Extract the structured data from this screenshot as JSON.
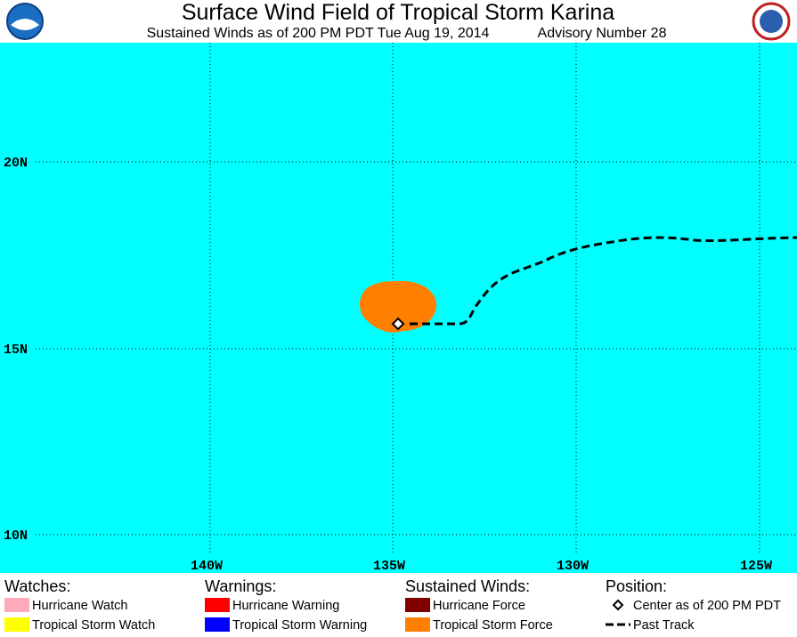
{
  "header": {
    "title": "Surface Wind Field of Tropical Storm Karina",
    "subtitle": "Sustained Winds as of 200 PM PDT Tue Aug 19, 2014",
    "advisory": "Advisory Number 28"
  },
  "map": {
    "lat_labels": [
      "20N",
      "15N",
      "10N"
    ],
    "lon_labels": [
      "140W",
      "135W",
      "130W",
      "125W"
    ]
  },
  "legend": {
    "groups": [
      {
        "heading": "Watches:",
        "items": [
          "Hurricane Watch",
          "Tropical Storm Watch"
        ]
      },
      {
        "heading": "Warnings:",
        "items": [
          "Hurricane Warning",
          "Tropical Storm Warning"
        ]
      },
      {
        "heading": "Sustained Winds:",
        "items": [
          "Hurricane Force",
          "Tropical Storm Force"
        ]
      },
      {
        "heading": "Position:",
        "items": [
          "Center as of 200 PM PDT",
          "Past Track"
        ]
      }
    ]
  }
}
